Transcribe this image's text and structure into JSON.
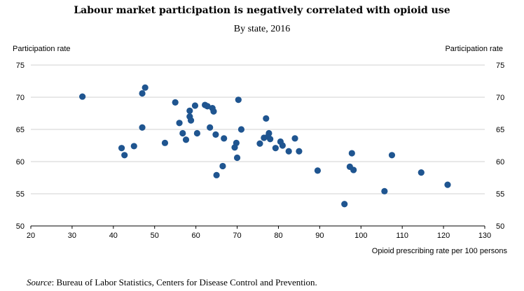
{
  "chart_data": {
    "type": "scatter",
    "title": "Labour market participation is negatively correlated with opioid use",
    "subtitle": "By state, 2016",
    "ylabel_left": "Participation rate",
    "ylabel_right": "Participation rate",
    "xlabel": "Opioid prescribing rate per 100 persons",
    "xlim": [
      20,
      130
    ],
    "ylim": [
      50,
      75
    ],
    "xticks": [
      "20",
      "30",
      "40",
      "50",
      "60",
      "70",
      "80",
      "90",
      "100",
      "110",
      "120",
      "130"
    ],
    "yticks": [
      "50",
      "55",
      "60",
      "65",
      "70",
      "75"
    ],
    "grid": "horizontal",
    "marker_color": "#1f5590",
    "points": [
      {
        "x": 32.5,
        "y": 70.1
      },
      {
        "x": 42.0,
        "y": 62.1
      },
      {
        "x": 42.7,
        "y": 61.0
      },
      {
        "x": 45.0,
        "y": 62.4
      },
      {
        "x": 47.0,
        "y": 70.6
      },
      {
        "x": 47.0,
        "y": 65.3
      },
      {
        "x": 47.7,
        "y": 71.5
      },
      {
        "x": 52.5,
        "y": 62.9
      },
      {
        "x": 55.0,
        "y": 69.2
      },
      {
        "x": 56.0,
        "y": 66.0
      },
      {
        "x": 56.8,
        "y": 64.4
      },
      {
        "x": 57.6,
        "y": 63.4
      },
      {
        "x": 58.5,
        "y": 67.9
      },
      {
        "x": 58.5,
        "y": 67.0
      },
      {
        "x": 58.8,
        "y": 66.4
      },
      {
        "x": 59.8,
        "y": 68.7
      },
      {
        "x": 60.3,
        "y": 64.4
      },
      {
        "x": 62.2,
        "y": 68.8
      },
      {
        "x": 62.8,
        "y": 68.6
      },
      {
        "x": 63.4,
        "y": 65.3
      },
      {
        "x": 64.0,
        "y": 68.3
      },
      {
        "x": 64.3,
        "y": 67.8
      },
      {
        "x": 64.8,
        "y": 64.2
      },
      {
        "x": 65.0,
        "y": 57.9
      },
      {
        "x": 66.5,
        "y": 59.3
      },
      {
        "x": 66.8,
        "y": 63.6
      },
      {
        "x": 69.4,
        "y": 62.2
      },
      {
        "x": 69.8,
        "y": 62.9
      },
      {
        "x": 70.0,
        "y": 60.6
      },
      {
        "x": 70.3,
        "y": 69.6
      },
      {
        "x": 71.0,
        "y": 65.0
      },
      {
        "x": 75.5,
        "y": 62.8
      },
      {
        "x": 76.5,
        "y": 63.7
      },
      {
        "x": 77.0,
        "y": 66.7
      },
      {
        "x": 77.5,
        "y": 63.9
      },
      {
        "x": 77.7,
        "y": 64.4
      },
      {
        "x": 78.0,
        "y": 63.5
      },
      {
        "x": 79.3,
        "y": 62.1
      },
      {
        "x": 80.5,
        "y": 63.1
      },
      {
        "x": 81.0,
        "y": 62.5
      },
      {
        "x": 82.5,
        "y": 61.6
      },
      {
        "x": 84.0,
        "y": 63.6
      },
      {
        "x": 85.0,
        "y": 61.6
      },
      {
        "x": 89.5,
        "y": 58.6
      },
      {
        "x": 96.0,
        "y": 53.4
      },
      {
        "x": 97.3,
        "y": 59.2
      },
      {
        "x": 97.8,
        "y": 61.3
      },
      {
        "x": 98.2,
        "y": 58.7
      },
      {
        "x": 105.7,
        "y": 55.4
      },
      {
        "x": 107.5,
        "y": 61.0
      },
      {
        "x": 114.6,
        "y": 58.3
      },
      {
        "x": 121.0,
        "y": 56.4
      }
    ]
  },
  "source": {
    "label": "Source",
    "text": ": Bureau of Labor Statistics, Centers for Disease Control and Prevention."
  }
}
